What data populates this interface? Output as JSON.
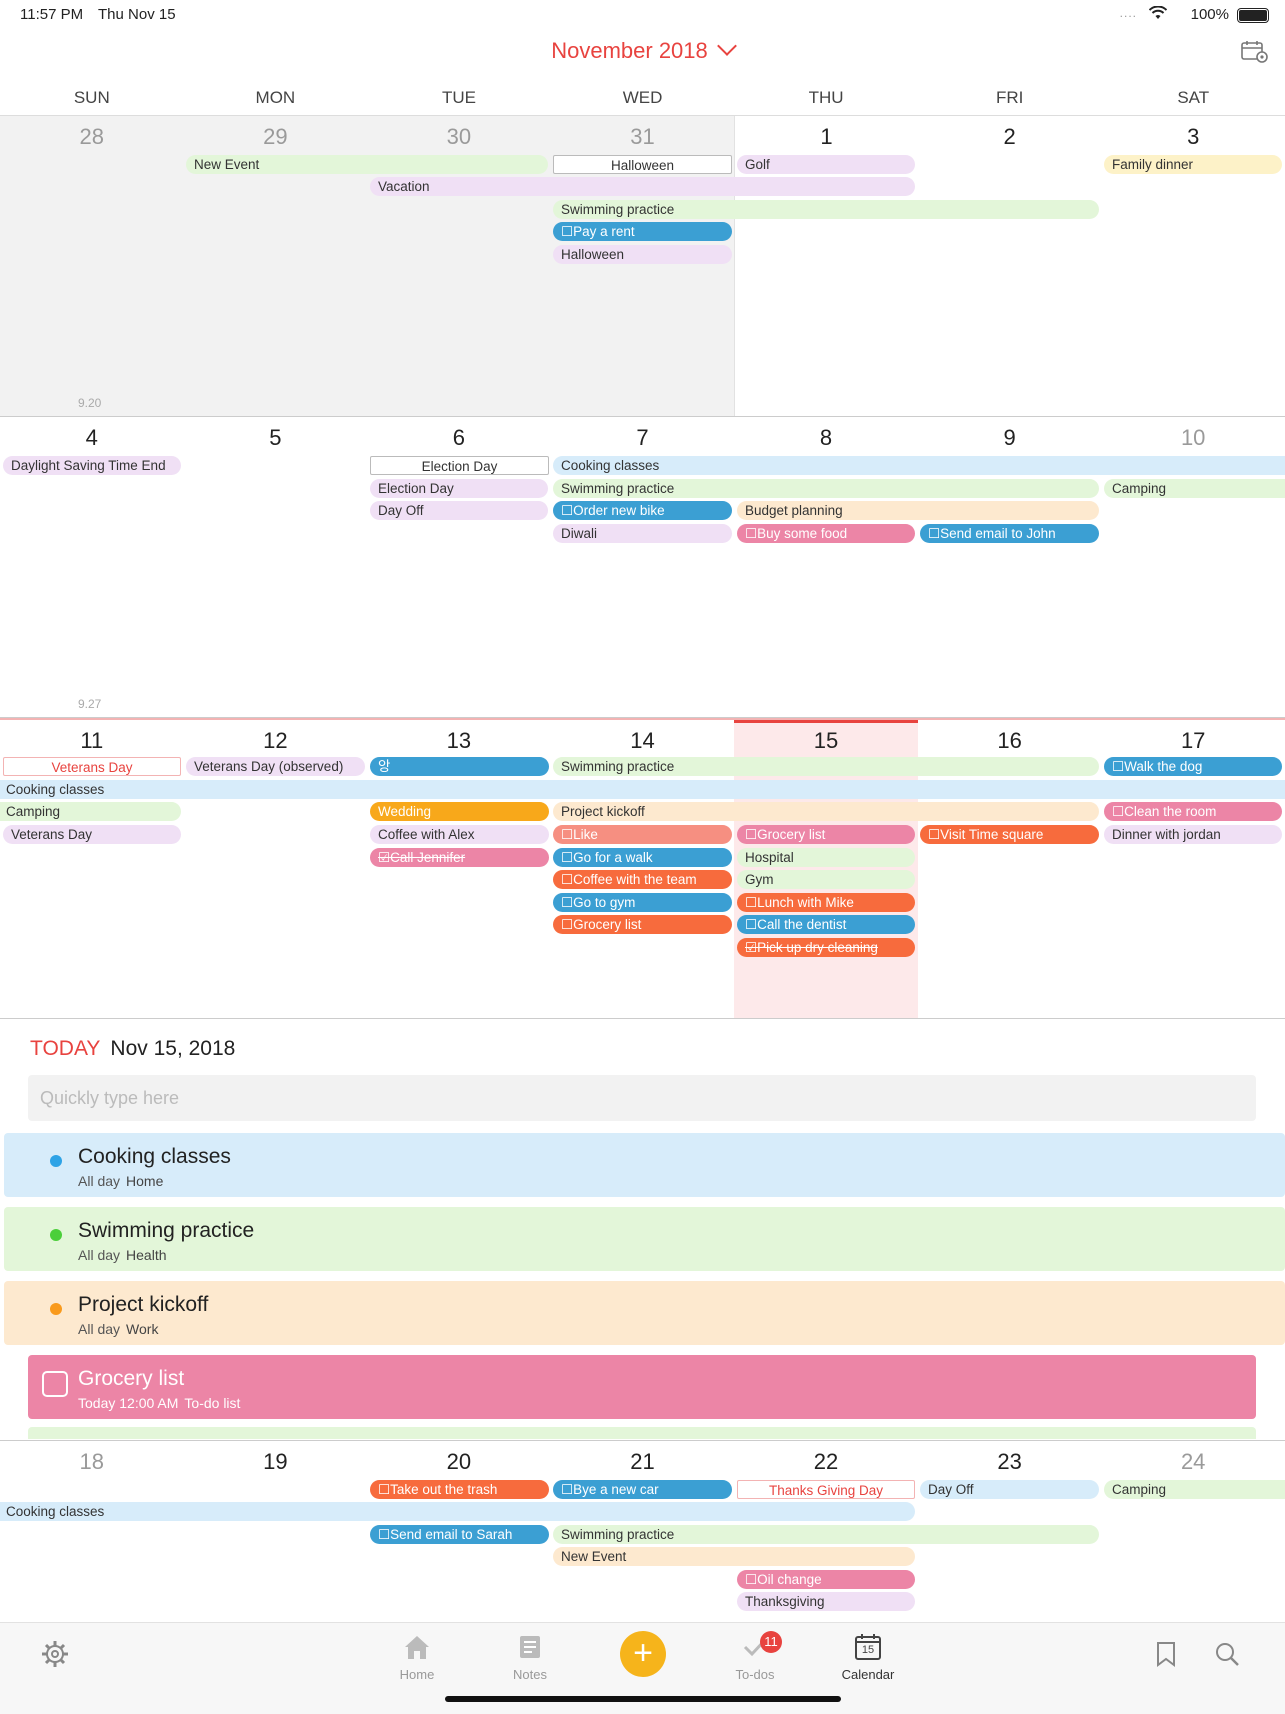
{
  "status_bar": {
    "time": "11:57 PM",
    "date": "Thu Nov 15",
    "battery": "100%",
    "dots": "...."
  },
  "header": {
    "title": "November 2018"
  },
  "weekdays": [
    "SUN",
    "MON",
    "TUE",
    "WED",
    "THU",
    "FRI",
    "SAT"
  ],
  "colors": {
    "accent": "#e8433f",
    "green": "#e3f6d9",
    "lilac": "#f0e0f5",
    "peach": "#fde9cf",
    "lightblue": "#d7ecfa",
    "cream": "#fdf2c8",
    "blue": "#3b9fd3",
    "orange": "#f76b3d",
    "pink": "#ec85a6",
    "yellow": "#f8a81a",
    "salmon": "#f68f81",
    "today_bg": "#fde9ea"
  },
  "weeks": [
    {
      "days": [
        "28",
        "29",
        "30",
        "31",
        "1",
        "2",
        "3"
      ],
      "week_label": "9.20",
      "events": [
        {
          "text": "New Event"
        },
        {
          "text": "Halloween"
        },
        {
          "text": "Golf"
        },
        {
          "text": "Family dinner"
        },
        {
          "text": "Vacation"
        },
        {
          "text": "Swimming practice"
        },
        {
          "text": "☐Pay a rent"
        },
        {
          "text": "Halloween"
        }
      ]
    },
    {
      "days": [
        "4",
        "5",
        "6",
        "7",
        "8",
        "9",
        "10"
      ],
      "week_label": "9.27",
      "events": [
        {
          "text": "Daylight Saving Time End"
        },
        {
          "text": "Election Day"
        },
        {
          "text": "Cooking classes"
        },
        {
          "text": "Election Day"
        },
        {
          "text": "Swimming practice"
        },
        {
          "text": "Camping"
        },
        {
          "text": "Day Off"
        },
        {
          "text": "☐Order new bike"
        },
        {
          "text": "Budget planning"
        },
        {
          "text": "Diwali"
        },
        {
          "text": "☐Buy some food"
        },
        {
          "text": "☐Send email to John"
        }
      ]
    },
    {
      "days": [
        "11",
        "12",
        "13",
        "14",
        "15",
        "16",
        "17"
      ],
      "events": [
        {
          "text": "Veterans Day"
        },
        {
          "text": "Veterans Day (observed)"
        },
        {
          "text": "앙"
        },
        {
          "text": "Swimming practice"
        },
        {
          "text": "☐Walk the dog"
        },
        {
          "text": "Cooking classes"
        },
        {
          "text": "Camping"
        },
        {
          "text": "Wedding"
        },
        {
          "text": "Project kickoff"
        },
        {
          "text": "☐Clean the room"
        },
        {
          "text": "Veterans Day"
        },
        {
          "text": "Coffee with Alex"
        },
        {
          "text": "☐Like"
        },
        {
          "text": "☐Grocery list"
        },
        {
          "text": "☐Visit Time square"
        },
        {
          "text": "Dinner with jordan"
        },
        {
          "text": "☑Call Jennifer"
        },
        {
          "text": "☐Go for a walk"
        },
        {
          "text": "Hospital"
        },
        {
          "text": "☐Coffee with the team"
        },
        {
          "text": "Gym"
        },
        {
          "text": "☐Go to gym"
        },
        {
          "text": "☐Lunch with Mike"
        },
        {
          "text": "☐Grocery list"
        },
        {
          "text": "☐Call the dentist"
        },
        {
          "text": "☑Pick up dry cleaning"
        }
      ]
    },
    {
      "days": [
        "18",
        "19",
        "20",
        "21",
        "22",
        "23",
        "24"
      ],
      "events": [
        {
          "text": "☐Take out the trash"
        },
        {
          "text": "☐Bye a new car"
        },
        {
          "text": "Thanks Giving Day"
        },
        {
          "text": "Day Off"
        },
        {
          "text": "Camping"
        },
        {
          "text": "Cooking classes"
        },
        {
          "text": "☐Send email to Sarah"
        },
        {
          "text": "Swimming practice"
        },
        {
          "text": "New Event"
        },
        {
          "text": "☐Oil change"
        },
        {
          "text": "Thanksgiving"
        }
      ]
    }
  ],
  "today": {
    "label": "TODAY",
    "date": "Nov 15, 2018",
    "quick_placeholder": "Quickly type here",
    "items": [
      {
        "title": "Cooking classes",
        "time": "All day",
        "calendar": "Home"
      },
      {
        "title": "Swimming practice",
        "time": "All day",
        "calendar": "Health"
      },
      {
        "title": "Project kickoff",
        "time": "All day",
        "calendar": "Work"
      },
      {
        "title": "Grocery list",
        "time": "Today 12:00 AM",
        "calendar": "To-do list"
      }
    ]
  },
  "tabbar": {
    "home": "Home",
    "notes": "Notes",
    "todos": "To-dos",
    "todos_badge": "11",
    "calendar": "Calendar",
    "calendar_icon_day": "15",
    "add": "+"
  }
}
